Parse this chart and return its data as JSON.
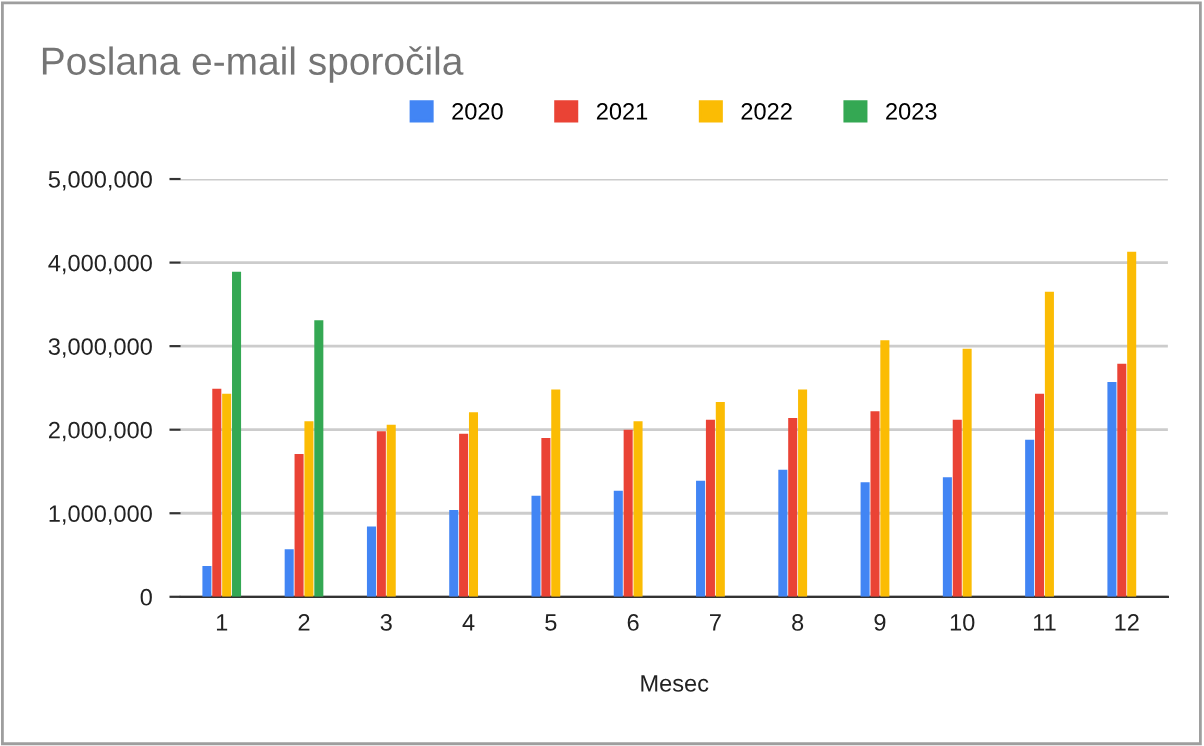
{
  "chart_data": {
    "type": "bar",
    "title": "Poslana e-mail sporočila",
    "xlabel": "Mesec",
    "categories": [
      "1",
      "2",
      "3",
      "4",
      "5",
      "6",
      "7",
      "8",
      "9",
      "10",
      "11",
      "12"
    ],
    "series": [
      {
        "name": "2020",
        "color": "#4285f4",
        "values": [
          370000,
          570000,
          840000,
          1040000,
          1210000,
          1270000,
          1390000,
          1520000,
          1370000,
          1430000,
          1880000,
          2570000
        ]
      },
      {
        "name": "2021",
        "color": "#ea4335",
        "values": [
          2490000,
          1710000,
          1980000,
          1950000,
          1900000,
          2000000,
          2120000,
          2140000,
          2220000,
          2120000,
          2430000,
          2790000
        ]
      },
      {
        "name": "2022",
        "color": "#fbbc04",
        "values": [
          2430000,
          2100000,
          2060000,
          2210000,
          2480000,
          2100000,
          2330000,
          2480000,
          3070000,
          2970000,
          3650000,
          4130000
        ]
      },
      {
        "name": "2023",
        "color": "#34a853",
        "values": [
          3890000,
          3310000,
          null,
          null,
          null,
          null,
          null,
          null,
          null,
          null,
          null,
          null
        ]
      }
    ],
    "ylim": [
      0,
      5000000
    ],
    "yticks": [
      0,
      {
        "value": 1000000,
        "label": "1,000,000"
      },
      {
        "value": 2000000,
        "label": "2,000,000"
      },
      {
        "value": 3000000,
        "label": "3,000,000"
      },
      {
        "value": 4000000,
        "label": "4,000,000"
      },
      {
        "value": 5000000,
        "label": "5,000,000"
      }
    ],
    "grid": "y",
    "legend": "top"
  }
}
